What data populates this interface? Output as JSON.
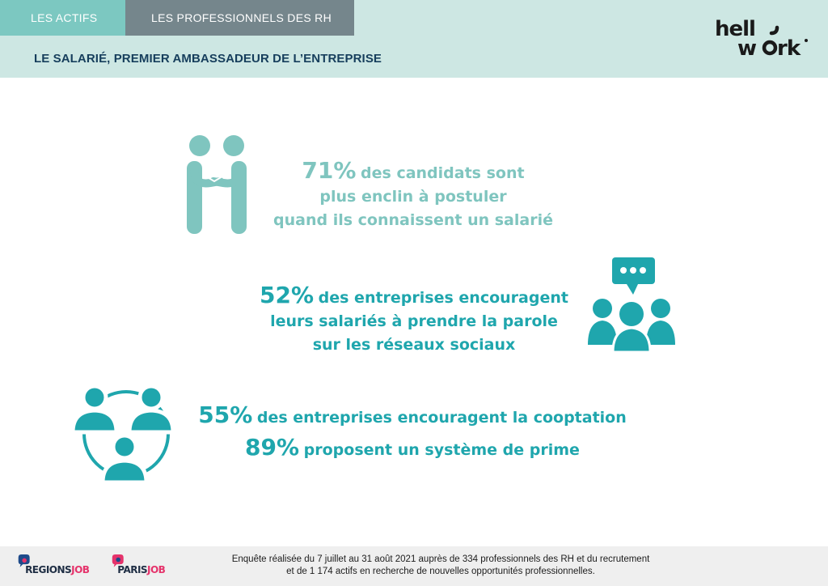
{
  "header": {
    "tabs": [
      {
        "label": "LES ACTIFS"
      },
      {
        "label": "LES PROFESSIONNELS DES RH"
      }
    ],
    "title": "LE SALARIÉ, PREMIER AMBASSADEUR DE L’ENTREPRISE",
    "logo_text": "hellowork"
  },
  "stats": [
    {
      "pct": "71%",
      "lines": [
        "des candidats sont",
        "plus enclin à postuler",
        "quand ils connaissent un salarié"
      ],
      "icon": "handshake-icon",
      "color": "#7fc5bf"
    },
    {
      "pct": "52%",
      "lines": [
        "des entreprises encouragent",
        "leurs salariés à prendre la parole",
        "sur les réseaux sociaux"
      ],
      "icon": "group-chat-icon",
      "color": "#1fa6ad"
    },
    {
      "pct": "55%",
      "text": "des entreprises encouragent la cooptation",
      "pct2": "89%",
      "text2": "proposent un système de prime",
      "icon": "referral-cycle-icon",
      "color": "#1fa6ad"
    }
  ],
  "footer": {
    "note_line1": "Enquête réalisée du 7 juillet au 31 août 2021 auprès de 334 professionnels des RH et du recrutement",
    "note_line2": "et de 1 174 actifs en recherche de nouvelles opportunités professionnelles.",
    "brands": [
      {
        "part1": "REGIONS",
        "part2": "JOB"
      },
      {
        "part1": "PARIS",
        "part2": "JOB"
      }
    ]
  },
  "colors": {
    "header_bg": "#cde7e3",
    "tab_active": "#7cc8c1",
    "tab_inactive": "#75868c",
    "title": "#163e5c",
    "teal_light": "#7fc5bf",
    "teal": "#1fa6ad",
    "brand_pink": "#e5336b"
  }
}
